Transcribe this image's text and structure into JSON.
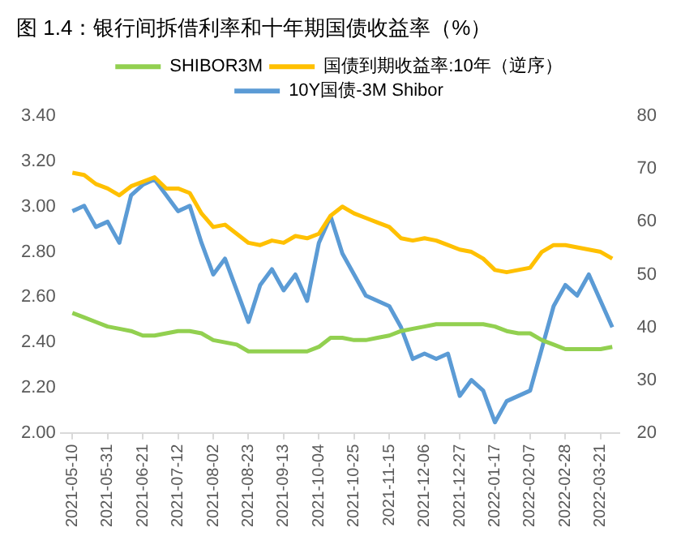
{
  "chart_data": {
    "type": "line",
    "title": "图 1.4：银行间拆借利率和十年期国债收益率（%）",
    "x": [
      "2021-05-10",
      "2021-05-17",
      "2021-05-24",
      "2021-05-31",
      "2021-06-07",
      "2021-06-14",
      "2021-06-21",
      "2021-06-28",
      "2021-07-05",
      "2021-07-12",
      "2021-07-19",
      "2021-07-26",
      "2021-08-02",
      "2021-08-09",
      "2021-08-16",
      "2021-08-23",
      "2021-08-30",
      "2021-09-06",
      "2021-09-13",
      "2021-09-20",
      "2021-09-27",
      "2021-10-04",
      "2021-10-11",
      "2021-10-18",
      "2021-10-25",
      "2021-11-01",
      "2021-11-08",
      "2021-11-15",
      "2021-11-22",
      "2021-11-29",
      "2021-12-06",
      "2021-12-13",
      "2021-12-20",
      "2021-12-27",
      "2022-01-03",
      "2022-01-10",
      "2022-01-17",
      "2022-01-24",
      "2022-01-31",
      "2022-02-07",
      "2022-02-14",
      "2022-02-21",
      "2022-02-28",
      "2022-03-07",
      "2022-03-14",
      "2022-03-21",
      "2022-03-28"
    ],
    "series": [
      {
        "name": "SHIBOR3M",
        "color": "#92d050",
        "values": [
          2.53,
          2.51,
          2.49,
          2.47,
          2.46,
          2.45,
          2.43,
          2.43,
          2.44,
          2.45,
          2.45,
          2.44,
          2.41,
          2.4,
          2.39,
          2.36,
          2.36,
          2.36,
          2.36,
          2.36,
          2.36,
          2.38,
          2.42,
          2.42,
          2.41,
          2.41,
          2.42,
          2.43,
          2.45,
          2.46,
          2.47,
          2.48,
          2.48,
          2.48,
          2.48,
          2.48,
          2.47,
          2.45,
          2.44,
          2.44,
          2.41,
          2.39,
          2.37,
          2.37,
          2.37,
          2.37,
          2.38
        ]
      },
      {
        "name": "国债到期收益率:10年（逆序）",
        "color": "#ffc000",
        "values": [
          3.15,
          3.14,
          3.1,
          3.08,
          3.05,
          3.09,
          3.11,
          3.13,
          3.08,
          3.08,
          3.06,
          2.97,
          2.91,
          2.92,
          2.88,
          2.84,
          2.83,
          2.85,
          2.84,
          2.87,
          2.86,
          2.88,
          2.96,
          3.0,
          2.97,
          2.95,
          2.93,
          2.91,
          2.86,
          2.85,
          2.86,
          2.85,
          2.83,
          2.81,
          2.8,
          2.77,
          2.72,
          2.71,
          2.72,
          2.73,
          2.8,
          2.83,
          2.83,
          2.82,
          2.81,
          2.8,
          2.77
        ]
      },
      {
        "name": "10Y国债-3M Shibor",
        "color": "#5b9bd5",
        "axis": "y2",
        "values": [
          62,
          63,
          59,
          60,
          56,
          65,
          67,
          68,
          65,
          62,
          63,
          56,
          50,
          53,
          47,
          41,
          48,
          51,
          47,
          50,
          45,
          56,
          61,
          54,
          50,
          46,
          45,
          44,
          40,
          34,
          35,
          34,
          35,
          27,
          30,
          28,
          22,
          26,
          27,
          28,
          36,
          44,
          48,
          46,
          50,
          45,
          40
        ]
      }
    ],
    "xlim": [
      "2021-05-03",
      "2022-04-01"
    ],
    "xticks": [
      "2021-05-10",
      "2021-05-31",
      "2021-06-21",
      "2021-07-12",
      "2021-08-02",
      "2021-08-23",
      "2021-09-13",
      "2021-10-04",
      "2021-10-25",
      "2021-11-15",
      "2021-12-06",
      "2021-12-27",
      "2022-01-17",
      "2022-02-07",
      "2022-02-28",
      "2022-03-21"
    ],
    "ylim": [
      2.0,
      3.4
    ],
    "yticks": [
      {
        "value": 2.0,
        "label": "2.00"
      },
      {
        "value": 2.2,
        "label": "2.20"
      },
      {
        "value": 2.4,
        "label": "2.40"
      },
      {
        "value": 2.6,
        "label": "2.60"
      },
      {
        "value": 2.8,
        "label": "2.80"
      },
      {
        "value": 3.0,
        "label": "3.00"
      },
      {
        "value": 3.2,
        "label": "3.20"
      },
      {
        "value": 3.4,
        "label": "3.40"
      }
    ],
    "y2lim": [
      20,
      80
    ],
    "y2ticks": [
      20,
      30,
      40,
      50,
      60,
      70,
      80
    ],
    "grid": false,
    "legend": "top",
    "marker": "none",
    "line_style": "solid"
  }
}
